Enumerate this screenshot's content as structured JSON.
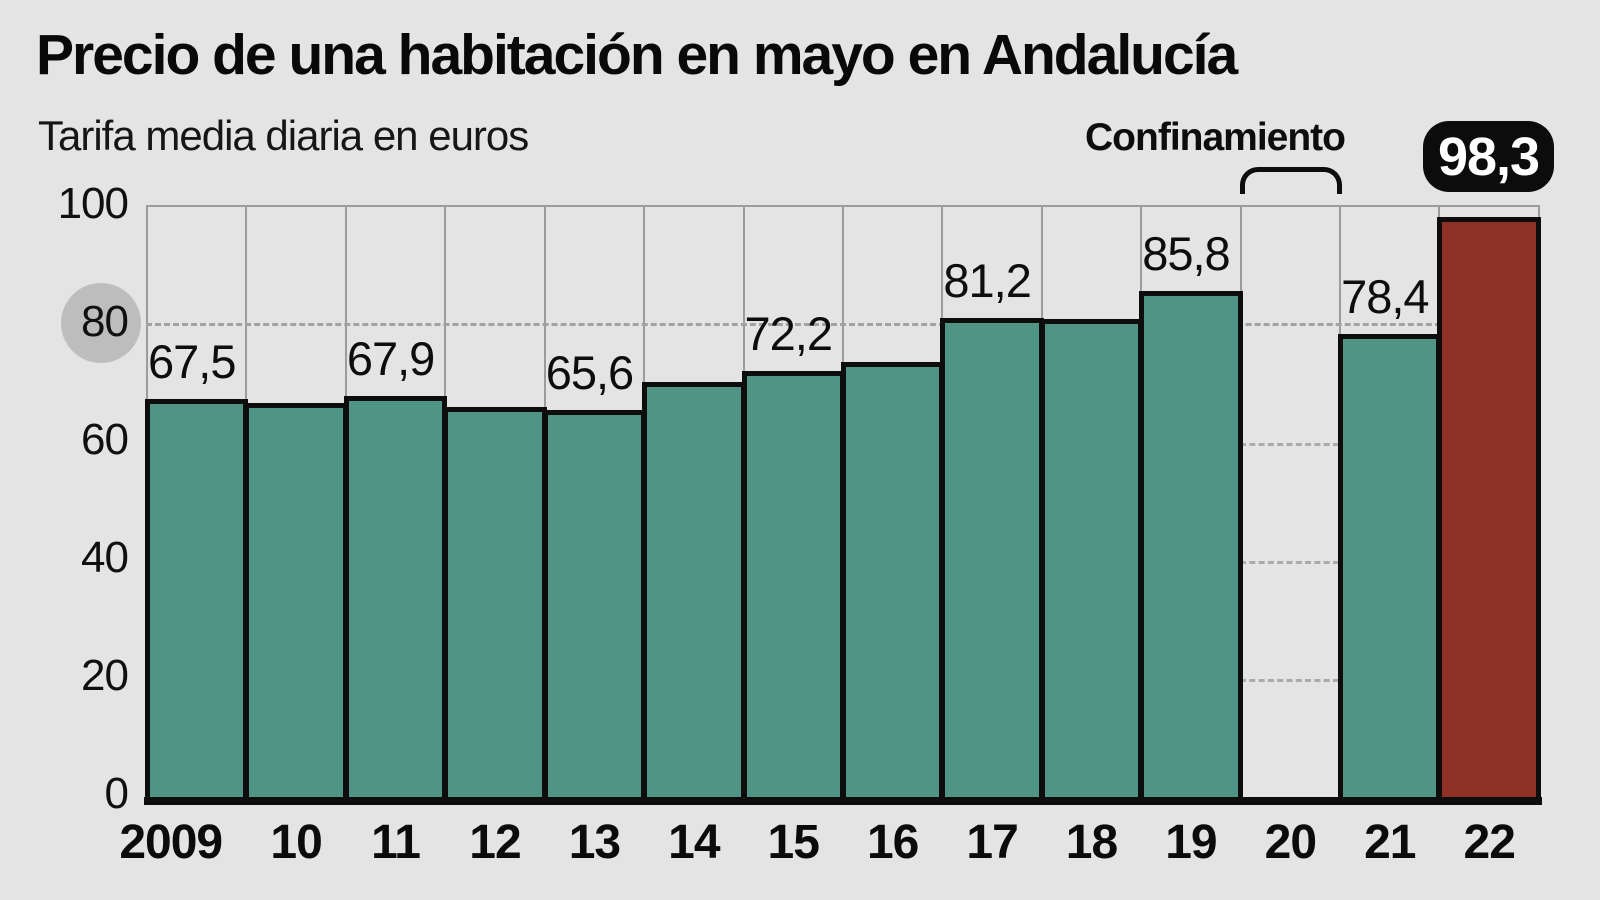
{
  "header": {
    "title": "Precio de una habitación en mayo en Andalucía",
    "subtitle": "Tarifa media diaria en euros"
  },
  "annotations": {
    "lockdown_label": "Confinamiento",
    "lockdown_year": "20",
    "highlight_badge": "98,3",
    "highlighted_tick": "80"
  },
  "colors": {
    "background": "#e4e4e4",
    "bar": "#4f9484",
    "bar_highlight": "#8f3126",
    "bar_border": "#0d0d0d",
    "grid_line": "#9c9c9c",
    "dashed_line": "#a2a2a2",
    "axis_circle": "#bdbdbd",
    "badge_bg": "#0c0c0c",
    "badge_text": "#ffffff"
  },
  "chart_data": {
    "type": "bar",
    "title": "Precio de una habitación en mayo en Andalucía",
    "subtitle": "Tarifa media diaria en euros",
    "categories": [
      "2009",
      "10",
      "11",
      "12",
      "13",
      "14",
      "15",
      "16",
      "17",
      "18",
      "19",
      "20",
      "21",
      "22"
    ],
    "values": [
      67.5,
      66.7,
      67.9,
      66.1,
      65.6,
      70.3,
      72.2,
      73.8,
      81.2,
      81.0,
      85.8,
      null,
      78.4,
      98.3
    ],
    "labels": [
      "67,5",
      "",
      "67,9",
      "",
      "65,6",
      "",
      "72,2",
      "",
      "81,2",
      "",
      "85,8",
      "",
      "78,4",
      ""
    ],
    "highlighted_index": 13,
    "missing_index": 11,
    "missing_reason": "Confinamiento",
    "ylim": [
      0,
      100
    ],
    "yticks": [
      0,
      20,
      40,
      60,
      80,
      100
    ],
    "grid": "dashed horizontal line at 80 across plot; extra dashed segments at 20, 40, 60 inside empty 2020 column; thin vertical separators between year columns",
    "legend": "none"
  }
}
